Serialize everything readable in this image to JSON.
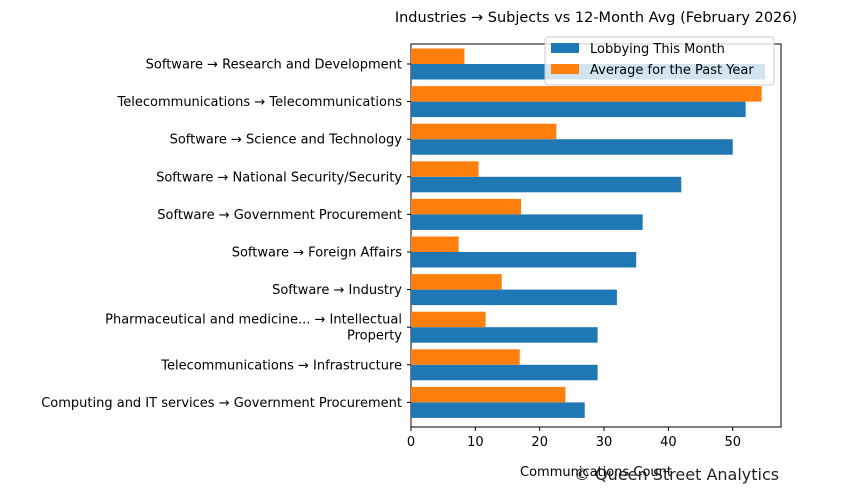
{
  "chart_data": {
    "type": "bar",
    "orientation": "horizontal",
    "title": "Industries → Subjects vs 12-Month Avg (February 2026)",
    "xlabel": "Communications Count",
    "ylabel": "",
    "xlim": [
      0,
      57.5
    ],
    "xticks": [
      0,
      10,
      20,
      30,
      40,
      50
    ],
    "grid": false,
    "legend_position": "top-right",
    "categories": [
      "Software → Research and Development",
      "Telecommunications → Telecommunications",
      "Software → Science and Technology",
      "Software → National Security/Security",
      "Software → Government Procurement",
      "Software → Foreign Affairs",
      "Software → Industry",
      "Pharmaceutical and medicine... → Intellectual\nProperty",
      "Telecommunications → Infrastructure",
      "Computing and IT services → Government Procurement"
    ],
    "series": [
      {
        "name": "Lobbying This Month",
        "color": "#1f77b4",
        "values": [
          55,
          52,
          50,
          42,
          36,
          35,
          32,
          29,
          29,
          27
        ]
      },
      {
        "name": "Average for the Past Year",
        "color": "#ff7f0e",
        "values": [
          8.3,
          54.5,
          22.6,
          10.5,
          17.1,
          7.4,
          14.1,
          11.6,
          16.9,
          24.0
        ]
      }
    ]
  },
  "watermark": "© Queen Street Analytics"
}
